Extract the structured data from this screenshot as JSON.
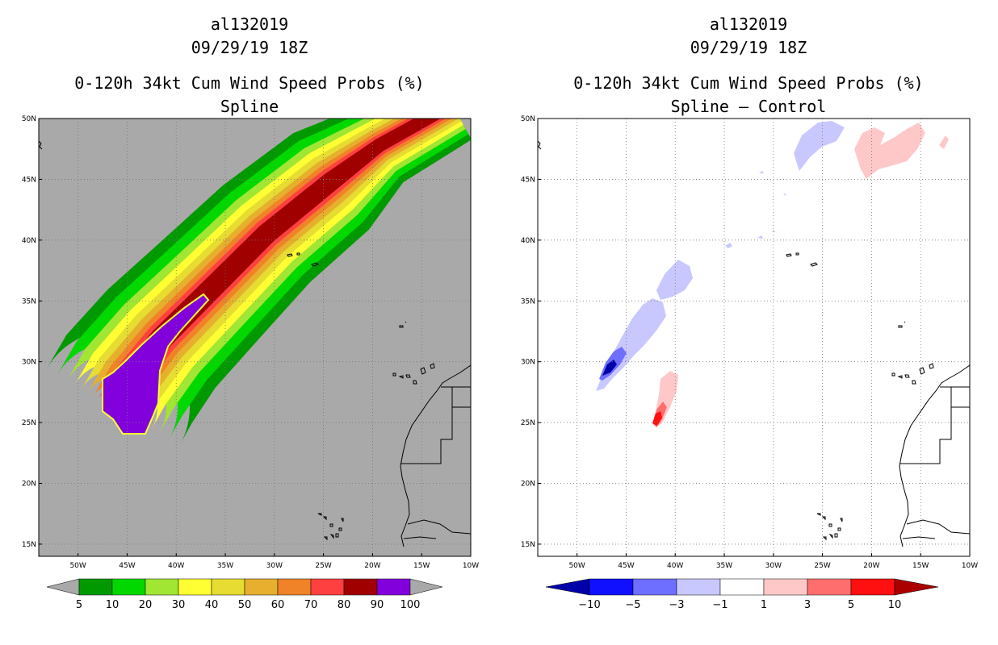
{
  "colors": {
    "ocean_left": "#a9a9a9",
    "ocean_right": "#ffffff",
    "prob": [
      "#009a00",
      "#00d800",
      "#a0e632",
      "#ffff33",
      "#e6dc32",
      "#e6af2d",
      "#f08228",
      "#ff4040",
      "#a00000",
      "#8200dc"
    ],
    "diff": [
      "#0000aa",
      "#1010ff",
      "#6e6eff",
      "#c8c8ff",
      "#ffffff",
      "#ffc8c8",
      "#ff6e6e",
      "#ff1010",
      "#aa0000"
    ]
  },
  "left": {
    "storm_id": "al132019",
    "datetime": "09/29/19 18Z",
    "product": "0-120h 34kt Cum Wind Speed Probs (%)",
    "subtitle": "Spline",
    "colorbar_labels": [
      "5",
      "10",
      "20",
      "30",
      "40",
      "50",
      "60",
      "70",
      "80",
      "90",
      "100"
    ]
  },
  "right": {
    "storm_id": "al132019",
    "datetime": "09/29/19 18Z",
    "product": "0-120h 34kt Cum Wind Speed Probs (%)",
    "subtitle": "Spline – Control",
    "colorbar_labels": [
      "−10",
      "−5",
      "−3",
      "−1",
      "1",
      "3",
      "5",
      "10"
    ]
  },
  "map": {
    "lat_labels": [
      "50N",
      "45N",
      "40N",
      "35N",
      "30N",
      "25N",
      "20N",
      "15N"
    ],
    "lon_labels": [
      "50W",
      "45W",
      "40W",
      "35W",
      "30W",
      "25W",
      "20W",
      "15W",
      "10W"
    ]
  },
  "chart_data": {
    "type": "map",
    "extent": {
      "lon": [
        -54,
        -10
      ],
      "lat": [
        14,
        50
      ]
    },
    "left_scale_percent": [
      5,
      10,
      20,
      30,
      40,
      50,
      60,
      70,
      80,
      90,
      100
    ],
    "right_scale_percent": [
      -10,
      -5,
      -3,
      -1,
      1,
      3,
      5,
      10
    ]
  }
}
